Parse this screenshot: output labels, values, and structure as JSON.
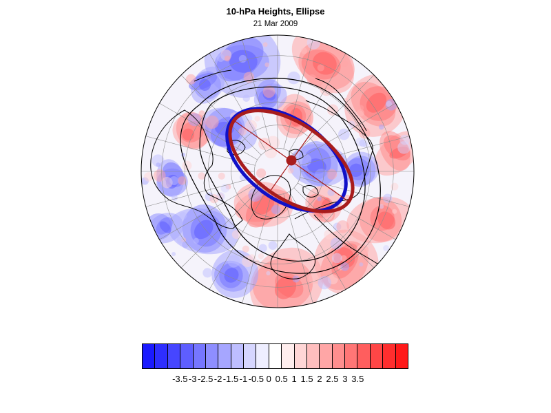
{
  "header": {
    "title": "10-hPa Heights, Ellipse",
    "date": "21 Mar 2009"
  },
  "map": {
    "projection": "north polar stereographic",
    "field": "10-hPa height anomaly (shaded)",
    "contours": "geopotential height (black lines)",
    "colors": {
      "observed_vortex_edge": "#1010c8",
      "fitted_ellipse": "#a81c1c",
      "ellipse_center": "#a81c1c",
      "coastlines": "#000000",
      "graticule": "#8c8c8c"
    }
  },
  "colorbar": {
    "colors": [
      "#1a1aff",
      "#2e2eff",
      "#4646ff",
      "#5e5eff",
      "#7676ff",
      "#8e8eff",
      "#a6a6ff",
      "#bebeff",
      "#d6d6ff",
      "#eeeeff",
      "#ffffff",
      "#ffeeee",
      "#ffd6d6",
      "#ffbebe",
      "#ffa6a6",
      "#ff8e8e",
      "#ff7676",
      "#ff5e5e",
      "#ff4646",
      "#ff2e2e",
      "#ff1a1a"
    ],
    "tick_labels": [
      "-3.5",
      "-3",
      "-2.5",
      "-2",
      "-1.5",
      "-1",
      "-0.5",
      "0",
      "0.5",
      "1",
      "1.5",
      "2",
      "2.5",
      "3",
      "3.5"
    ]
  }
}
